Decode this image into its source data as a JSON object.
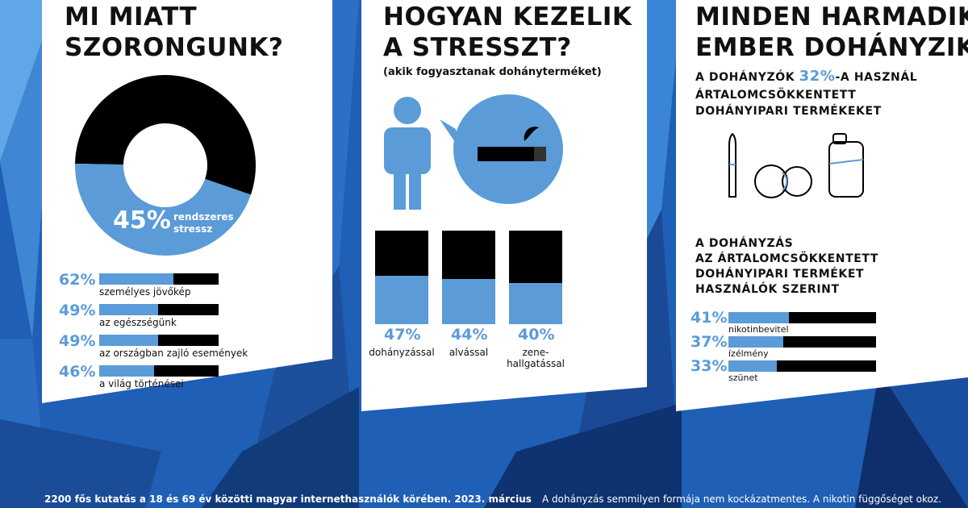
{
  "colors": {
    "accent": "#5b9bd8",
    "dark": "#000000",
    "panel": "#ffffff",
    "background": "#1f5fb5"
  },
  "panel1": {
    "title_line1": "MI MIATT",
    "title_line2": "SZORONGUNK?",
    "donut_value": "45%",
    "donut_label_line1": "rendszeres",
    "donut_label_line2": "stressz",
    "bars": [
      {
        "value_text": "62%",
        "label": "személyes jövőkép"
      },
      {
        "value_text": "49%",
        "label": "az egészségünk"
      },
      {
        "value_text": "49%",
        "label": "az országban zajló események"
      },
      {
        "value_text": "46%",
        "label": "a világ történései"
      }
    ]
  },
  "panel2": {
    "title_line1": "HOGYAN KEZELIK",
    "title_line2": "A STRESSZT?",
    "subtitle": "(akik fogyasztanak dohányterméket)",
    "columns": [
      {
        "value_text": "47%",
        "label_line1": "dohányzással",
        "label_line2": "",
        "icon": "cigarette-icon"
      },
      {
        "value_text": "44%",
        "label_line1": "alvással",
        "label_line2": "",
        "icon": "sleeping-face-icon"
      },
      {
        "value_text": "40%",
        "label_line1": "zene-",
        "label_line2": "hallgatással",
        "icon": "headphones-icon"
      }
    ]
  },
  "panel3": {
    "title_line1": "MINDEN HARMADIK",
    "title_line2": "EMBER DOHÁNYZIK",
    "stat_prefix": "A DOHÁNYZÓK ",
    "stat_value": "32%",
    "stat_suffix": "-A  HASZNÁL",
    "stat_line2": "ÁRTALOMCSÖKKENTETT",
    "stat_line3": "DOHÁNYIPARI TERMÉKEKET",
    "section_line1": "A DOHÁNYZÁS",
    "section_line2": "AZ ÁRTALOMCSÖKKENTETT",
    "section_line3": "DOHÁNYIPARI TERMÉKET",
    "section_line4": "HASZNÁLÓK SZERINT",
    "bars": [
      {
        "value_text": "41%",
        "label": "nikotinbevitel"
      },
      {
        "value_text": "37%",
        "label": "ízélmény"
      },
      {
        "value_text": "33%",
        "label": "szünet"
      }
    ]
  },
  "footer": {
    "left": "2200 fős kutatás  a 18 és 69 év közötti magyar internethasználók körében. 2023. március",
    "right": "A dohányzás semmilyen formája nem kockázatmentes. A nikotin függőséget okoz."
  },
  "chart_data": [
    {
      "type": "pie",
      "title": "MI MIATT SZORONGUNK?",
      "values": [
        45,
        55
      ],
      "categories": [
        "rendszeres stressz",
        ""
      ]
    },
    {
      "type": "bar",
      "title": "MI MIATT SZORONGUNK?",
      "orientation": "horizontal",
      "categories": [
        "személyes jövőkép",
        "az egészségünk",
        "az országban zajló események",
        "a világ történései"
      ],
      "values": [
        62,
        49,
        49,
        46
      ],
      "ylim": [
        0,
        100
      ]
    },
    {
      "type": "bar",
      "title": "HOGYAN KEZELIK A STRESSZT?",
      "subtitle": "(akik fogyasztanak dohányterméket)",
      "categories": [
        "dohányzással",
        "alvással",
        "zene-hallgatással"
      ],
      "values": [
        47,
        44,
        40
      ],
      "ylim": [
        0,
        100
      ]
    },
    {
      "type": "bar",
      "title": "A DOHÁNYZÁS AZ ÁRTALOMCSÖKKENTETT DOHÁNYIPARI TERMÉKET HASZNÁLÓK SZERINT",
      "orientation": "horizontal",
      "categories": [
        "nikotinbevitel",
        "ízélmény",
        "szünet"
      ],
      "values": [
        41,
        37,
        33
      ],
      "ylim": [
        0,
        100
      ]
    }
  ]
}
